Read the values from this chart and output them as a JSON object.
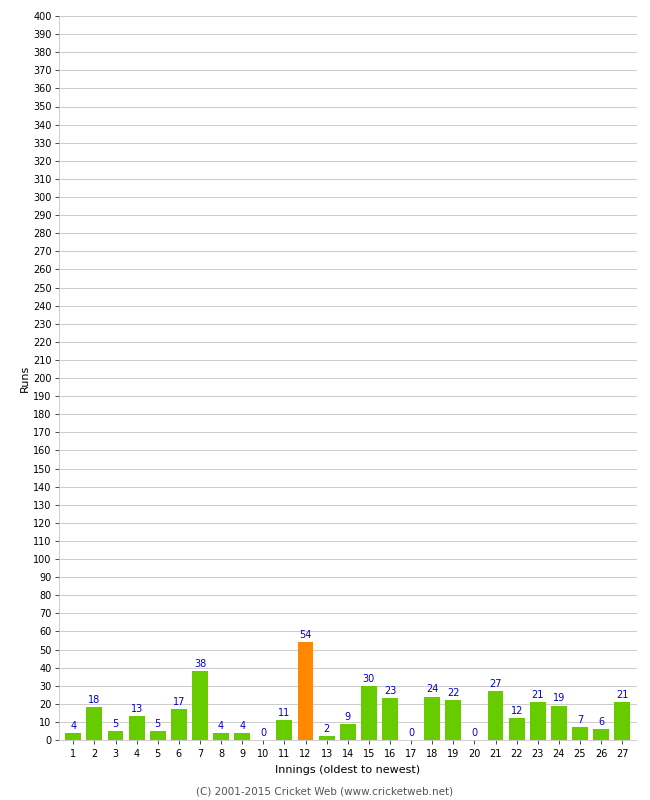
{
  "innings": [
    1,
    2,
    3,
    4,
    5,
    6,
    7,
    8,
    9,
    10,
    11,
    12,
    13,
    14,
    15,
    16,
    17,
    18,
    19,
    20,
    21,
    22,
    23,
    24,
    25,
    26,
    27
  ],
  "runs": [
    4,
    18,
    5,
    13,
    5,
    17,
    38,
    4,
    4,
    0,
    11,
    54,
    2,
    9,
    30,
    23,
    0,
    24,
    22,
    0,
    27,
    12,
    21,
    19,
    7,
    6,
    21
  ],
  "highlight_index": 11,
  "bar_color_normal": "#66cc00",
  "bar_color_highlight": "#ff8800",
  "label_color": "#0000cc",
  "xlabel": "Innings (oldest to newest)",
  "ylabel": "Runs",
  "ylim": [
    0,
    400
  ],
  "yticks": [
    0,
    10,
    20,
    30,
    40,
    50,
    60,
    70,
    80,
    90,
    100,
    110,
    120,
    130,
    140,
    150,
    160,
    170,
    180,
    190,
    200,
    210,
    220,
    230,
    240,
    250,
    260,
    270,
    280,
    290,
    300,
    310,
    320,
    330,
    340,
    350,
    360,
    370,
    380,
    390,
    400
  ],
  "footer": "(C) 2001-2015 Cricket Web (www.cricketweb.net)",
  "background_color": "#ffffff",
  "grid_color": "#cccccc",
  "label_fontsize": 7,
  "axis_tick_fontsize": 7,
  "axis_label_fontsize": 8,
  "footer_fontsize": 7.5
}
